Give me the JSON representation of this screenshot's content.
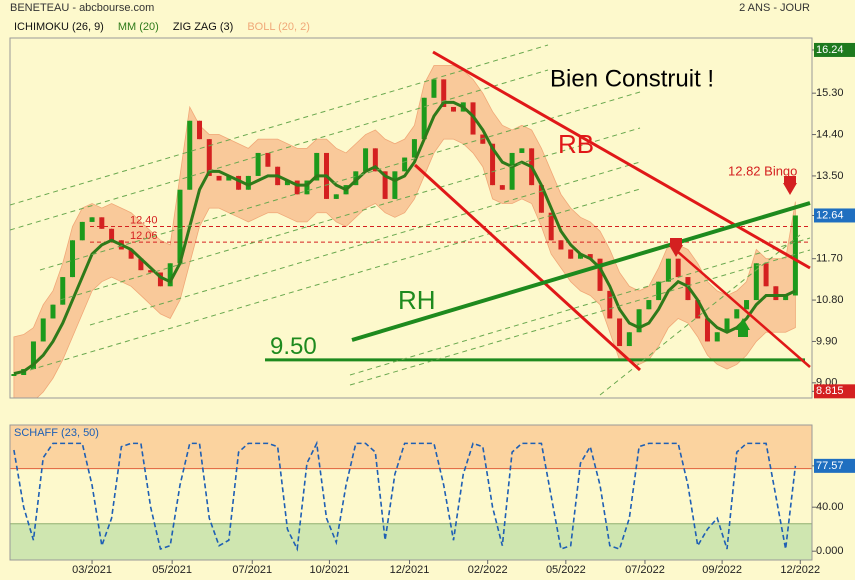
{
  "header": {
    "title": "BENETEAU - abcbourse.com",
    "period": "2 ANS - JOUR"
  },
  "chart_data": [
    {
      "type": "candlestick",
      "legend": [
        {
          "name": "ICHIMOKU (26, 9)",
          "color": "#111111"
        },
        {
          "name": "ZIG ZAG (3)",
          "color": "#111111"
        }
      ],
      "price": {
        "up_color": "#1c9a1c",
        "down_color": "#d42020",
        "values": [
          9.17,
          9.3,
          9.9,
          10.4,
          10.7,
          11.3,
          12.1,
          12.5,
          12.6,
          12.35,
          12.1,
          11.9,
          11.7,
          11.45,
          11.4,
          11.1,
          11.6,
          13.2,
          14.7,
          14.3,
          13.5,
          13.4,
          13.5,
          13.2,
          13.5,
          14.0,
          13.7,
          13.3,
          13.4,
          13.1,
          13.4,
          14.0,
          13.0,
          13.1,
          13.3,
          13.6,
          14.1,
          13.6,
          13.0,
          13.6,
          13.9,
          14.3,
          15.2,
          15.6,
          15.0,
          14.9,
          15.1,
          14.4,
          14.2,
          13.3,
          13.2,
          14.0,
          14.1,
          13.3,
          12.7,
          12.1,
          11.9,
          11.7,
          11.8,
          11.7,
          11.0,
          10.4,
          9.8,
          10.1,
          10.6,
          10.8,
          11.2,
          11.7,
          11.3,
          10.8,
          10.4,
          9.9,
          10.1,
          10.4,
          10.6,
          10.8,
          11.6,
          11.1,
          10.8,
          10.9,
          12.64
        ]
      },
      "ma": {
        "name": "MM (20)",
        "color": "#2e7a1a",
        "values": [
          9.2,
          9.25,
          9.4,
          9.6,
          9.9,
          10.3,
          10.8,
          11.3,
          11.8,
          12.0,
          12.1,
          12.0,
          11.9,
          11.7,
          11.5,
          11.3,
          11.2,
          11.6,
          12.4,
          13.2,
          13.6,
          13.6,
          13.5,
          13.4,
          13.3,
          13.4,
          13.5,
          13.5,
          13.4,
          13.3,
          13.3,
          13.5,
          13.5,
          13.3,
          13.2,
          13.4,
          13.6,
          13.7,
          13.5,
          13.4,
          13.5,
          13.8,
          14.3,
          14.8,
          15.1,
          15.1,
          15.0,
          14.8,
          14.5,
          14.1,
          13.8,
          13.7,
          13.8,
          13.7,
          13.3,
          12.8,
          12.3,
          12.0,
          11.8,
          11.7,
          11.5,
          11.1,
          10.6,
          10.3,
          10.2,
          10.3,
          10.6,
          11.0,
          11.2,
          11.1,
          10.8,
          10.4,
          10.2,
          10.1,
          10.2,
          10.4,
          10.7,
          10.9,
          10.9,
          10.9,
          11.0
        ]
      },
      "boll": {
        "name": "BOLL (20, 2)",
        "color": "#f0a878",
        "fill": "#f9c99a",
        "upper": [
          10.0,
          10.05,
          10.2,
          10.7,
          11.0,
          11.6,
          12.4,
          12.8,
          12.9,
          12.8,
          12.9,
          12.8,
          12.7,
          12.5,
          12.3,
          12.1,
          12.0,
          13.5,
          15.0,
          14.6,
          14.4,
          14.4,
          14.3,
          14.2,
          14.1,
          14.3,
          14.3,
          14.3,
          14.2,
          14.1,
          14.1,
          14.3,
          14.3,
          14.1,
          14.0,
          14.2,
          14.4,
          14.5,
          14.3,
          14.2,
          14.3,
          14.6,
          15.5,
          15.9,
          15.9,
          15.9,
          15.8,
          15.6,
          15.3,
          14.9,
          14.6,
          14.5,
          14.6,
          14.5,
          14.1,
          13.6,
          13.1,
          12.8,
          12.6,
          12.5,
          12.3,
          11.9,
          11.4,
          11.1,
          11.0,
          11.1,
          11.5,
          12.0,
          12.0,
          11.9,
          11.6,
          11.2,
          11.0,
          10.9,
          11.0,
          11.2,
          11.9,
          11.7,
          11.7,
          11.7,
          12.94
        ],
        "lower": [
          8.4,
          8.45,
          8.6,
          8.8,
          9.1,
          9.5,
          10.0,
          10.5,
          11.0,
          11.2,
          11.3,
          11.2,
          11.1,
          10.9,
          10.7,
          10.5,
          10.4,
          10.8,
          11.6,
          12.4,
          12.8,
          12.8,
          12.7,
          12.6,
          12.5,
          12.6,
          12.7,
          12.7,
          12.6,
          12.5,
          12.5,
          12.7,
          12.7,
          12.5,
          12.4,
          12.6,
          12.8,
          12.9,
          12.7,
          12.6,
          12.7,
          13.0,
          13.5,
          14.0,
          14.3,
          14.3,
          14.2,
          14.0,
          13.7,
          13.0,
          12.9,
          12.9,
          13.0,
          12.9,
          12.4,
          11.8,
          11.5,
          11.2,
          11.0,
          10.9,
          10.7,
          10.1,
          9.5,
          9.5,
          9.4,
          9.5,
          9.8,
          10.2,
          10.4,
          10.3,
          10.0,
          9.6,
          9.4,
          9.3,
          9.4,
          9.6,
          9.9,
          10.1,
          10.1,
          10.1,
          10.2
        ]
      },
      "xlim": [
        -0.4,
        81.7
      ],
      "ylim": [
        8.67,
        16.5
      ],
      "yticks": [
        {
          "value": 16.24,
          "color": "#1e7a1e"
        },
        {
          "value": 15.3,
          "label": "15.30"
        },
        {
          "value": 14.4,
          "label": "14.40"
        },
        {
          "value": 13.5,
          "label": "13.50"
        },
        {
          "value": 12.64,
          "color": "#1f6fc0"
        },
        {
          "value": 11.7,
          "label": "11.70"
        },
        {
          "value": 10.8,
          "label": "10.80"
        },
        {
          "value": 9.9,
          "label": "9.90"
        },
        {
          "value": 9,
          "label": "9.00"
        },
        {
          "value": 8.815,
          "color": "#d42020"
        }
      ],
      "annotations": {
        "comment": "Bien Construit !",
        "rb": "RB",
        "rh": "RH",
        "bingo": "12.82  Bingo",
        "support": {
          "value": 9.5,
          "label": "9.50",
          "color": "#1e8a1e"
        },
        "levels": [
          {
            "value": 12.4,
            "label": "12.40"
          },
          12.06
        ],
        "level_color": "#d42020"
      }
    },
    {
      "type": "line",
      "name": "SCHAFF (23, 50)",
      "color": "#1e5fb4",
      "values": [
        92,
        40,
        10,
        85,
        98,
        98,
        98,
        98,
        60,
        5,
        30,
        95,
        98,
        98,
        40,
        2,
        5,
        60,
        98,
        98,
        30,
        5,
        10,
        90,
        98,
        98,
        98,
        95,
        20,
        2,
        80,
        98,
        30,
        8,
        60,
        98,
        98,
        90,
        10,
        70,
        98,
        98,
        98,
        98,
        60,
        10,
        70,
        98,
        95,
        40,
        5,
        90,
        98,
        98,
        98,
        50,
        2,
        5,
        80,
        95,
        60,
        5,
        2,
        30,
        95,
        98,
        98,
        98,
        98,
        60,
        5,
        20,
        30,
        2,
        90,
        98,
        98,
        98,
        50,
        2,
        77.57
      ],
      "xlim": [
        -0.4,
        81.7
      ],
      "ylim": [
        -8,
        114.7
      ],
      "yticks": [
        {
          "value": 77.57,
          "color": "#1f6fc0"
        },
        {
          "value": 40,
          "label": "40.00"
        },
        {
          "value": 0,
          "label": "0.000"
        }
      ],
      "zones": [
        {
          "from": 75,
          "to": 114.7,
          "color": "#fbd39f"
        },
        {
          "from": -8,
          "to": 25,
          "color": "#cfe6b0"
        }
      ],
      "level_lines": [
        {
          "value": 75,
          "color": "#e0603c"
        },
        {
          "value": 25,
          "color": "#8fb070"
        }
      ],
      "xticks": [
        {
          "value": 8,
          "label": "03/2021"
        },
        {
          "value": 16.2,
          "label": "05/2021"
        },
        {
          "value": 24.4,
          "label": "07/2021"
        },
        {
          "value": 32.3,
          "label": "10/2021"
        },
        {
          "value": 40.5,
          "label": "12/2021"
        },
        {
          "value": 48.5,
          "label": "02/2022"
        },
        {
          "value": 56.5,
          "label": "05/2022"
        },
        {
          "value": 64.6,
          "label": "07/2022"
        },
        {
          "value": 72.5,
          "label": "09/2022"
        },
        {
          "value": 80.5,
          "label": "12/2022"
        }
      ]
    }
  ]
}
